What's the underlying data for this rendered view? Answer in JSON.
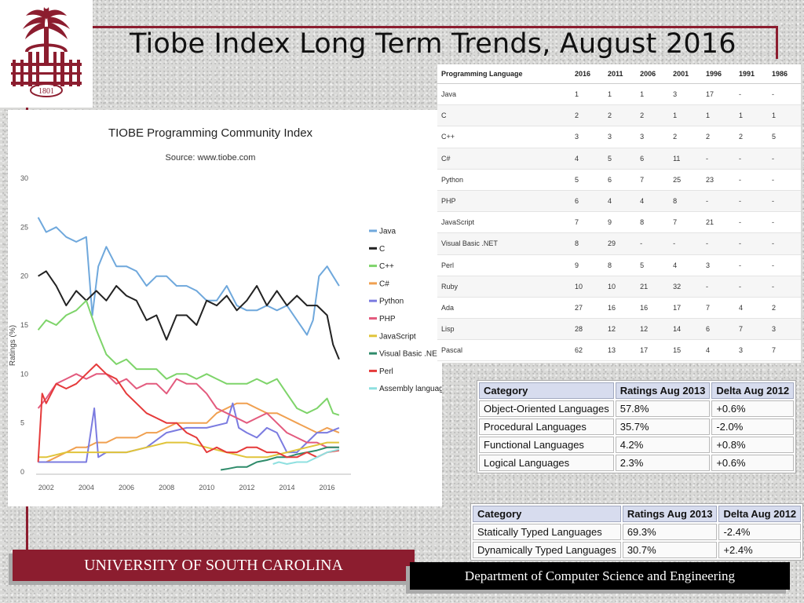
{
  "slide": {
    "title": "Tiobe Index Long Term Trends, August 2016",
    "logo_year": "1801"
  },
  "chart_data": {
    "type": "line",
    "title": "TIOBE Programming Community Index",
    "subtitle": "Source: www.tiobe.com",
    "ylabel": "Ratings (%)",
    "ylim": [
      0,
      30
    ],
    "yticks": [
      0,
      5,
      10,
      15,
      20,
      25,
      30
    ],
    "xlim": [
      2001.5,
      2016.8
    ],
    "xticks": [
      2002,
      2004,
      2006,
      2008,
      2010,
      2012,
      2014,
      2016
    ],
    "legend_position": "right",
    "series": [
      {
        "name": "Java",
        "color": "#6fa8dc",
        "x": [
          2001.6,
          2002.0,
          2002.5,
          2003.0,
          2003.5,
          2004.0,
          2004.3,
          2004.6,
          2005.0,
          2005.5,
          2006.0,
          2006.5,
          2007.0,
          2007.5,
          2008.0,
          2008.5,
          2009.0,
          2009.5,
          2010.0,
          2010.5,
          2011.0,
          2011.5,
          2012.0,
          2012.5,
          2013.0,
          2013.5,
          2014.0,
          2014.5,
          2015.0,
          2015.3,
          2015.6,
          2016.0,
          2016.3,
          2016.6
        ],
        "y": [
          26,
          24.5,
          25,
          24,
          23.5,
          24,
          16,
          21,
          23,
          21,
          21,
          20.5,
          19,
          20,
          20,
          19,
          19,
          18.5,
          17.5,
          17.5,
          19,
          17,
          16.5,
          16.5,
          17,
          16.5,
          17,
          15.5,
          14,
          15.5,
          20,
          21,
          20,
          19
        ]
      },
      {
        "name": "C",
        "color": "#222222",
        "x": [
          2001.6,
          2002.0,
          2002.5,
          2003.0,
          2003.5,
          2004.0,
          2004.5,
          2005.0,
          2005.5,
          2006.0,
          2006.5,
          2007.0,
          2007.5,
          2008.0,
          2008.5,
          2009.0,
          2009.5,
          2010.0,
          2010.5,
          2011.0,
          2011.5,
          2012.0,
          2012.5,
          2013.0,
          2013.5,
          2014.0,
          2014.5,
          2015.0,
          2015.5,
          2016.0,
          2016.3,
          2016.6
        ],
        "y": [
          20,
          20.5,
          19,
          17,
          18.5,
          17.5,
          18.5,
          17.5,
          19,
          18,
          17.5,
          15.5,
          16,
          13.5,
          16,
          16,
          15,
          17.5,
          17,
          18,
          16.5,
          17.5,
          19,
          17,
          18.5,
          17,
          18,
          17,
          17,
          16,
          13,
          11.5
        ]
      },
      {
        "name": "C++",
        "color": "#7ed46a",
        "x": [
          2001.6,
          2002.0,
          2002.5,
          2003.0,
          2003.5,
          2004.0,
          2004.5,
          2005.0,
          2005.5,
          2006.0,
          2006.5,
          2007.0,
          2007.5,
          2008.0,
          2008.5,
          2009.0,
          2009.5,
          2010.0,
          2010.5,
          2011.0,
          2011.5,
          2012.0,
          2012.5,
          2013.0,
          2013.5,
          2014.0,
          2014.5,
          2015.0,
          2015.5,
          2016.0,
          2016.3,
          2016.6
        ],
        "y": [
          14.5,
          15.5,
          15,
          16,
          16.5,
          17.5,
          14.5,
          12,
          11,
          11.5,
          10.5,
          10.5,
          10.5,
          9.5,
          10,
          10,
          9.5,
          10,
          9.5,
          9,
          9,
          9,
          9.5,
          9,
          9.5,
          8,
          6.5,
          6,
          6.5,
          7.5,
          6,
          5.8
        ]
      },
      {
        "name": "C#",
        "color": "#f0a050",
        "x": [
          2001.6,
          2002.0,
          2002.5,
          2003.0,
          2003.5,
          2004.0,
          2004.5,
          2005.0,
          2005.5,
          2006.0,
          2006.5,
          2007.0,
          2007.5,
          2008.0,
          2008.5,
          2009.0,
          2009.5,
          2010.0,
          2010.5,
          2011.0,
          2011.5,
          2012.0,
          2012.5,
          2013.0,
          2013.5,
          2014.0,
          2014.5,
          2015.0,
          2015.5,
          2016.0,
          2016.6
        ],
        "y": [
          1,
          1,
          1.5,
          2,
          2.5,
          2.5,
          3,
          3,
          3.5,
          3.5,
          3.5,
          4,
          4,
          4.5,
          5,
          5,
          5,
          5,
          6,
          6.5,
          7,
          7,
          6.5,
          6,
          6,
          5.5,
          5,
          4.5,
          4,
          4.5,
          4
        ]
      },
      {
        "name": "Python",
        "color": "#7b7be0",
        "x": [
          2001.6,
          2002.0,
          2003.0,
          2004.0,
          2004.4,
          2004.6,
          2005.0,
          2006.0,
          2007.0,
          2008.0,
          2009.0,
          2010.0,
          2011.0,
          2011.3,
          2011.6,
          2012.0,
          2012.5,
          2013.0,
          2013.5,
          2014.0,
          2014.5,
          2015.0,
          2015.5,
          2016.0,
          2016.6
        ],
        "y": [
          1,
          1,
          1,
          1,
          6.5,
          1.5,
          2,
          2,
          2.5,
          4,
          4.5,
          4.5,
          5,
          7,
          4.5,
          4,
          3.5,
          4.5,
          4,
          2,
          2,
          3,
          4,
          4,
          4.5
        ]
      },
      {
        "name": "PHP",
        "color": "#e35b7e",
        "x": [
          2001.6,
          2002.0,
          2002.5,
          2003.0,
          2003.5,
          2004.0,
          2004.5,
          2005.0,
          2005.5,
          2006.0,
          2006.5,
          2007.0,
          2007.5,
          2008.0,
          2008.5,
          2009.0,
          2009.5,
          2010.0,
          2010.5,
          2011.0,
          2011.5,
          2012.0,
          2012.5,
          2013.0,
          2013.5,
          2014.0,
          2014.5,
          2015.0,
          2015.5,
          2016.0,
          2016.6
        ],
        "y": [
          6.5,
          7.5,
          9,
          9.5,
          10,
          9.5,
          10,
          10,
          9,
          9.5,
          8.5,
          9,
          9,
          8,
          9.5,
          9,
          9,
          8,
          6.5,
          6,
          5.5,
          5,
          5.5,
          6,
          5,
          4,
          3.5,
          3,
          3,
          2.5,
          2.5
        ]
      },
      {
        "name": "JavaScript",
        "color": "#e0c43a",
        "x": [
          2001.6,
          2002.0,
          2003.0,
          2004.0,
          2005.0,
          2006.0,
          2007.0,
          2008.0,
          2009.0,
          2010.0,
          2011.0,
          2012.0,
          2013.0,
          2014.0,
          2015.0,
          2016.0,
          2016.6
        ],
        "y": [
          1.5,
          1.5,
          2,
          2,
          2,
          2,
          2.5,
          3,
          3,
          2.5,
          2,
          1.5,
          1.5,
          2,
          2.5,
          3,
          3
        ]
      },
      {
        "name": "Visual Basic .NET",
        "color": "#2e8b6a",
        "x": [
          2010.7,
          2011.0,
          2011.5,
          2012.0,
          2012.5,
          2013.0,
          2013.5,
          2014.0,
          2014.5,
          2015.0,
          2015.5,
          2016.0,
          2016.6
        ],
        "y": [
          0.2,
          0.3,
          0.5,
          0.5,
          1,
          1.2,
          1.5,
          1.5,
          1.8,
          2,
          2.2,
          2.5,
          2.5
        ]
      },
      {
        "name": "Perl",
        "color": "#e53a3a",
        "x": [
          2001.6,
          2001.8,
          2002.0,
          2002.5,
          2003.0,
          2003.5,
          2004.0,
          2004.5,
          2005.0,
          2005.5,
          2006.0,
          2006.5,
          2007.0,
          2007.5,
          2008.0,
          2008.5,
          2009.0,
          2009.5,
          2010.0,
          2010.5,
          2011.0,
          2011.5,
          2012.0,
          2012.5,
          2013.0,
          2013.5,
          2014.0,
          2014.5,
          2015.0,
          2015.5,
          2016.0,
          2016.6
        ],
        "y": [
          1,
          8,
          7,
          9,
          8.5,
          9,
          10,
          11,
          10,
          9.5,
          8,
          7,
          6,
          5.5,
          5,
          5,
          4,
          3.5,
          2,
          2.5,
          2,
          2,
          2.5,
          2.5,
          2,
          2,
          1.5,
          1.5,
          2,
          1.5,
          2,
          2.2
        ]
      },
      {
        "name": "Assembly language",
        "color": "#8fe0e0",
        "x": [
          2013.3,
          2013.6,
          2014.0,
          2014.5,
          2015.0,
          2015.5,
          2016.0,
          2016.6
        ],
        "y": [
          0.8,
          1,
          0.8,
          1,
          1,
          1.5,
          2,
          2.3
        ]
      }
    ]
  },
  "rankings": {
    "headers": [
      "Programming Language",
      "2016",
      "2011",
      "2006",
      "2001",
      "1996",
      "1991",
      "1986"
    ],
    "rows": [
      [
        "Java",
        "1",
        "1",
        "1",
        "3",
        "17",
        "-",
        "-"
      ],
      [
        "C",
        "2",
        "2",
        "2",
        "1",
        "1",
        "1",
        "1"
      ],
      [
        "C++",
        "3",
        "3",
        "3",
        "2",
        "2",
        "2",
        "5"
      ],
      [
        "C#",
        "4",
        "5",
        "6",
        "11",
        "-",
        "-",
        "-"
      ],
      [
        "Python",
        "5",
        "6",
        "7",
        "25",
        "23",
        "-",
        "-"
      ],
      [
        "PHP",
        "6",
        "4",
        "4",
        "8",
        "-",
        "-",
        "-"
      ],
      [
        "JavaScript",
        "7",
        "9",
        "8",
        "7",
        "21",
        "-",
        "-"
      ],
      [
        "Visual Basic .NET",
        "8",
        "29",
        "-",
        "-",
        "-",
        "-",
        "-"
      ],
      [
        "Perl",
        "9",
        "8",
        "5",
        "4",
        "3",
        "-",
        "-"
      ],
      [
        "Ruby",
        "10",
        "10",
        "21",
        "32",
        "-",
        "-",
        "-"
      ],
      [
        "Ada",
        "27",
        "16",
        "16",
        "17",
        "7",
        "4",
        "2"
      ],
      [
        "Lisp",
        "28",
        "12",
        "12",
        "14",
        "6",
        "7",
        "3"
      ],
      [
        "Pascal",
        "62",
        "13",
        "17",
        "15",
        "4",
        "3",
        "7"
      ]
    ]
  },
  "paradigm_table": {
    "headers": [
      "Category",
      "Ratings Aug 2013",
      "Delta Aug 2012"
    ],
    "rows": [
      [
        "Object-Oriented Languages",
        "57.8%",
        "+0.6%"
      ],
      [
        "Procedural Languages",
        "35.7%",
        "-2.0%"
      ],
      [
        "Functional Languages",
        "4.2%",
        "+0.8%"
      ],
      [
        "Logical Languages",
        "2.3%",
        "+0.6%"
      ]
    ]
  },
  "typing_table": {
    "headers": [
      "Category",
      "Ratings Aug 2013",
      "Delta Aug 2012"
    ],
    "rows": [
      [
        "Statically Typed Languages",
        "69.3%",
        "-2.4%"
      ],
      [
        "Dynamically Typed Languages",
        "30.7%",
        "+2.4%"
      ]
    ]
  },
  "footer": {
    "university": "UNIVERSITY OF SOUTH CAROLINA",
    "department": "Department of Computer Science and Engineering"
  },
  "colors": {
    "garnet": "#8c1d2f",
    "footer_dark": "#000000",
    "table_header": "#d7dcee"
  }
}
